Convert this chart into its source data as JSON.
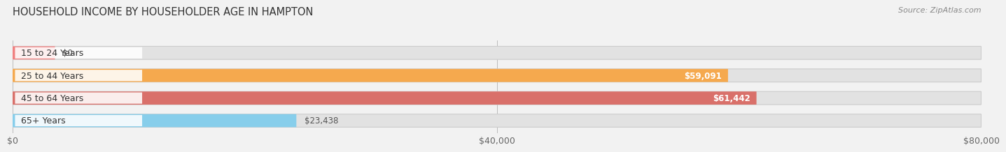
{
  "title": "HOUSEHOLD INCOME BY HOUSEHOLDER AGE IN HAMPTON",
  "source": "Source: ZipAtlas.com",
  "categories": [
    "15 to 24 Years",
    "25 to 44 Years",
    "45 to 64 Years",
    "65+ Years"
  ],
  "values": [
    0,
    59091,
    61442,
    23438
  ],
  "bar_colors": [
    "#f08080",
    "#f5a94e",
    "#d9706a",
    "#87CEEB"
  ],
  "value_labels": [
    "$0",
    "$59,091",
    "$61,442",
    "$23,438"
  ],
  "xlim": [
    0,
    80000
  ],
  "xticks": [
    0,
    40000,
    80000
  ],
  "xtick_labels": [
    "$0",
    "$40,000",
    "$80,000"
  ],
  "background_color": "#f2f2f2",
  "bar_background_color": "#e2e2e2",
  "label_bg_color": "#ffffff",
  "title_fontsize": 10.5,
  "label_fontsize": 9,
  "value_fontsize": 8.5,
  "source_fontsize": 8,
  "bar_height": 0.58,
  "stub_value": 3500
}
